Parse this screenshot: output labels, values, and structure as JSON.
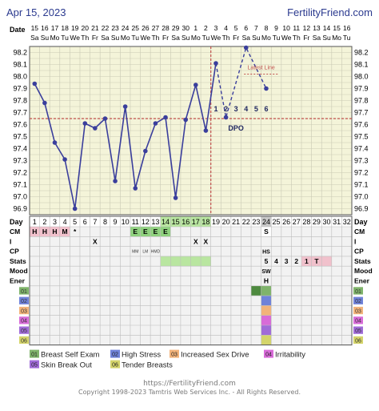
{
  "header": {
    "date": "Apr 15, 2023",
    "site": "FertilityFriend.com"
  },
  "labels": {
    "date_row": "Date",
    "day_row": "Day",
    "dpo": "DPO",
    "latest_label": "Latest Line"
  },
  "dates": [
    "15",
    "16",
    "17",
    "18",
    "19",
    "20",
    "21",
    "22",
    "23",
    "24",
    "25",
    "26",
    "27",
    "28",
    "29",
    "30",
    "1",
    "2",
    "3",
    "4",
    "5",
    "6",
    "7",
    "8",
    "9",
    "10",
    "11",
    "12",
    "13",
    "14",
    "15",
    "16"
  ],
  "weekdays": [
    "Sa",
    "Su",
    "Mo",
    "Tu",
    "We",
    "Th",
    "Fr",
    "Sa",
    "Su",
    "Mo",
    "Tu",
    "We",
    "Th",
    "Fr",
    "Sa",
    "Su",
    "Mo",
    "Tu",
    "We",
    "Th",
    "Fr",
    "Sa",
    "Su",
    "Mo",
    "Tu",
    "We",
    "Th",
    "Fr",
    "Sa",
    "Su",
    "Mo",
    "Tu"
  ],
  "chart_data": {
    "type": "line",
    "x": [
      1,
      2,
      3,
      4,
      5,
      6,
      7,
      8,
      9,
      10,
      11,
      12,
      13,
      14,
      15,
      16,
      17,
      18,
      19,
      20,
      21,
      22,
      23,
      24
    ],
    "y": [
      97.94,
      97.78,
      97.45,
      97.31,
      96.9,
      97.61,
      97.57,
      97.65,
      97.13,
      97.75,
      97.07,
      97.38,
      97.61,
      97.66,
      96.99,
      97.64,
      97.93,
      97.55,
      98.11,
      97.66,
      null,
      98.24,
      null,
      97.9
    ],
    "dashed_segment_days": [
      19,
      20,
      22,
      24
    ],
    "xlabel": "Day",
    "ylabel": "",
    "yticks": [
      96.9,
      97.0,
      97.1,
      97.2,
      97.3,
      97.4,
      97.5,
      97.6,
      97.7,
      97.8,
      97.9,
      98.0,
      98.1,
      98.2
    ],
    "ylim": [
      96.85,
      98.25
    ],
    "coverline": 97.65,
    "ovulation_day": 18,
    "dpo_numbers": [
      "1",
      "2",
      "3",
      "4",
      "5",
      "6"
    ],
    "days": [
      "1",
      "2",
      "3",
      "4",
      "5",
      "6",
      "7",
      "8",
      "9",
      "10",
      "11",
      "12",
      "13",
      "14",
      "15",
      "16",
      "17",
      "18",
      "19",
      "20",
      "21",
      "22",
      "23",
      "24",
      "25",
      "26",
      "27",
      "28",
      "29",
      "30",
      "31",
      "32"
    ]
  },
  "rows": {
    "labels": [
      "CM",
      "I",
      "CP",
      "Stats",
      "Mood",
      "Ener"
    ],
    "cm": {
      "1": "H",
      "2": "H",
      "3": "H",
      "4": "M",
      "5": "*",
      "11": "E",
      "12": "E",
      "13": "E",
      "14": "E",
      "24": "S"
    },
    "i": {
      "7": "X",
      "17": "X",
      "18": "X"
    },
    "i_notes": {
      "11": "MM",
      "12": "LM",
      "13": "HMD"
    },
    "cp": {
      "24": "HS"
    },
    "stats": {
      "24": "5",
      "25": "4",
      "26": "3",
      "27": "2",
      "28": "1",
      "29": "T"
    },
    "mood": {
      "24": "SW"
    },
    "ener": {
      "24": "H"
    }
  },
  "symptom_rows": [
    "01",
    "02",
    "03",
    "04",
    "05",
    "06"
  ],
  "legend": [
    {
      "code": "01",
      "label": "Breast Self Exam",
      "color": "#7fb36a"
    },
    {
      "code": "02",
      "label": "High Stress",
      "color": "#6f82d9"
    },
    {
      "code": "03",
      "label": "Increased Sex Drive",
      "color": "#f2b37a"
    },
    {
      "code": "04",
      "label": "Irritability",
      "color": "#d86bd8"
    },
    {
      "code": "05",
      "label": "Skin Break Out",
      "color": "#a06bd8"
    },
    {
      "code": "06",
      "label": "Tender Breasts",
      "color": "#d4d46a"
    }
  ],
  "footer": {
    "url": "https://FertilityFriend.com",
    "copyright": "Copyright 1998-2023 Tamtris Web Services Inc. - All Rights Reserved."
  }
}
